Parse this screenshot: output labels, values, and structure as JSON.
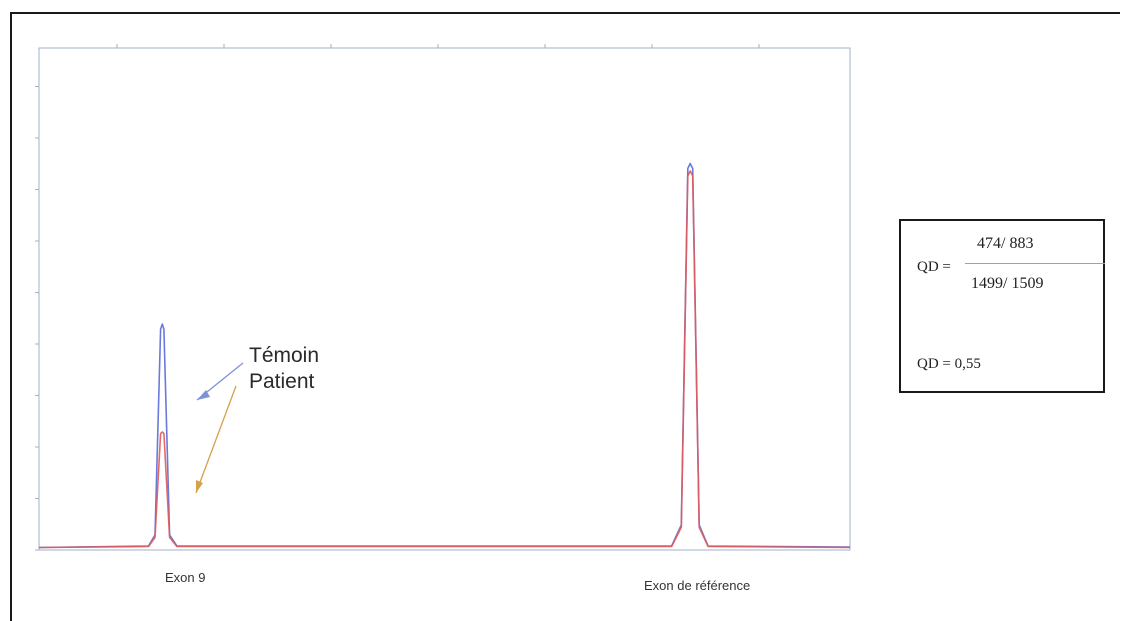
{
  "chart_data": {
    "type": "line",
    "title": "",
    "xlabel": "",
    "ylabel": "",
    "xlim": [
      0,
      100
    ],
    "ylim": [
      0,
      1000
    ],
    "grid": false,
    "series": [
      {
        "name": "Témoin",
        "color": "#5a6ad8",
        "points": [
          [
            0,
            5
          ],
          [
            13.5,
            8
          ],
          [
            14.3,
            30
          ],
          [
            15.0,
            440
          ],
          [
            15.2,
            450
          ],
          [
            15.4,
            440
          ],
          [
            16.1,
            30
          ],
          [
            17,
            8
          ],
          [
            78,
            8
          ],
          [
            79.2,
            50
          ],
          [
            80.0,
            760
          ],
          [
            80.3,
            770
          ],
          [
            80.6,
            760
          ],
          [
            81.4,
            50
          ],
          [
            82.5,
            8
          ],
          [
            100,
            6
          ]
        ]
      },
      {
        "name": "Patient",
        "color": "#e05a5a",
        "points": [
          [
            0,
            5
          ],
          [
            13.5,
            7
          ],
          [
            14.3,
            25
          ],
          [
            15.0,
            232
          ],
          [
            15.2,
            235
          ],
          [
            15.4,
            232
          ],
          [
            16.1,
            25
          ],
          [
            17,
            7
          ],
          [
            78,
            7
          ],
          [
            79.2,
            45
          ],
          [
            80.0,
            745
          ],
          [
            80.3,
            755
          ],
          [
            80.6,
            745
          ],
          [
            81.4,
            45
          ],
          [
            82.5,
            7
          ],
          [
            100,
            5
          ]
        ]
      }
    ],
    "peak_labels": {
      "left": "Exon 9",
      "right": "Exon de référence"
    }
  },
  "annotation": {
    "line1": "Témoin",
    "line2": "Patient"
  },
  "qd_box": {
    "lhs": "QD =",
    "numerator": "474/ 883",
    "denominator": "1499/ 1509",
    "result": "QD = 0,55"
  }
}
